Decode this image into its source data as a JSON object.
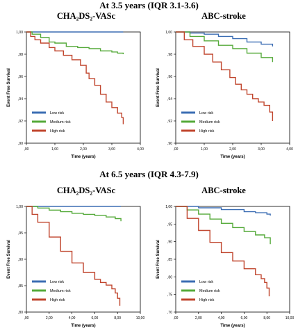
{
  "sections": [
    {
      "title": "At 3.5 years (IQR 3.1-3.6)"
    },
    {
      "title": "At 6.5 years (IQR 4.3-7.9)"
    }
  ],
  "legend_labels": [
    "Low risk",
    "Medium risk",
    "High risk"
  ],
  "colors": {
    "low": "#3b6db3",
    "medium": "#55aa3a",
    "high": "#c0452d"
  },
  "chart_data": [
    {
      "type": "line",
      "title": "CHA₂DS₂-VASc",
      "xlabel": "Time (years)",
      "ylabel": "Event Free Survival",
      "xlim": [
        0,
        4
      ],
      "ylim": [
        0.9,
        1.0
      ],
      "x_ticks": [
        ",00",
        "1,00",
        "2,00",
        "3,00",
        "4,00"
      ],
      "y_ticks": [
        ",90",
        ",92",
        ",94",
        ",96",
        ",98",
        "1,00"
      ],
      "series": [
        {
          "name": "Low risk",
          "x": [
            0,
            0.5,
            1.0,
            1.5,
            2.0,
            2.5,
            3.0,
            3.4
          ],
          "y": [
            1.0,
            1.0,
            1.0,
            1.0,
            1.0,
            1.0,
            1.0,
            1.0
          ]
        },
        {
          "name": "Medium risk",
          "x": [
            0,
            0.2,
            0.5,
            0.8,
            1.0,
            1.4,
            1.8,
            2.2,
            2.6,
            3.0,
            3.2,
            3.4
          ],
          "y": [
            1.0,
            0.998,
            0.995,
            0.991,
            0.99,
            0.987,
            0.986,
            0.985,
            0.983,
            0.982,
            0.981,
            0.98
          ]
        },
        {
          "name": "High risk",
          "x": [
            0,
            0.15,
            0.3,
            0.5,
            0.8,
            1.0,
            1.3,
            1.6,
            1.9,
            2.1,
            2.2,
            2.4,
            2.6,
            2.8,
            3.0,
            3.2,
            3.35,
            3.4
          ],
          "y": [
            1.0,
            0.996,
            0.993,
            0.99,
            0.986,
            0.983,
            0.979,
            0.975,
            0.97,
            0.963,
            0.958,
            0.952,
            0.944,
            0.937,
            0.932,
            0.927,
            0.923,
            0.917
          ]
        }
      ]
    },
    {
      "type": "line",
      "title": "ABC-stroke",
      "xlabel": "Time (years)",
      "ylabel": "Event Free Survival",
      "xlim": [
        0,
        4
      ],
      "ylim": [
        0.9,
        1.0
      ],
      "x_ticks": [
        ",00",
        "1,00",
        "2,00",
        "3,00",
        "4,00"
      ],
      "y_ticks": [
        ",90",
        ",92",
        ",94",
        ",96",
        ",98",
        "1,00"
      ],
      "series": [
        {
          "name": "Low risk",
          "x": [
            0,
            0.5,
            1.0,
            1.5,
            2.0,
            2.5,
            3.0,
            3.4
          ],
          "y": [
            1.0,
            0.999,
            0.998,
            0.996,
            0.994,
            0.991,
            0.989,
            0.987
          ]
        },
        {
          "name": "Medium risk",
          "x": [
            0,
            0.5,
            1.0,
            1.5,
            2.0,
            2.5,
            3.0,
            3.4
          ],
          "y": [
            1.0,
            0.996,
            0.992,
            0.988,
            0.985,
            0.981,
            0.977,
            0.973
          ]
        },
        {
          "name": "High risk",
          "x": [
            0,
            0.3,
            0.6,
            1.0,
            1.3,
            1.6,
            1.9,
            2.1,
            2.3,
            2.5,
            2.7,
            2.9,
            3.1,
            3.3,
            3.4
          ],
          "y": [
            1.0,
            0.993,
            0.987,
            0.98,
            0.973,
            0.966,
            0.959,
            0.953,
            0.948,
            0.944,
            0.94,
            0.937,
            0.934,
            0.928,
            0.92
          ]
        }
      ]
    },
    {
      "type": "line",
      "title": "CHA₂DS₂-VASc",
      "xlabel": "Time (years)",
      "ylabel": "Event Free Survival",
      "xlim": [
        0,
        10
      ],
      "ylim": [
        0.8,
        1.0
      ],
      "x_ticks": [
        ",00",
        "2,00",
        "4,00",
        "6,00",
        "8,00",
        "10,00"
      ],
      "y_ticks": [
        ",80",
        ",85",
        ",90",
        ",95",
        "1,00"
      ],
      "series": [
        {
          "name": "Low risk",
          "x": [
            0,
            2,
            4,
            6,
            8,
            8.3
          ],
          "y": [
            1.0,
            1.0,
            1.0,
            1.0,
            1.0,
            1.0
          ]
        },
        {
          "name": "Medium risk",
          "x": [
            0,
            1,
            2,
            3,
            4,
            5,
            6,
            7,
            7.8,
            8.3
          ],
          "y": [
            1.0,
            0.997,
            0.993,
            0.99,
            0.987,
            0.985,
            0.983,
            0.98,
            0.977,
            0.972
          ]
        },
        {
          "name": "High risk",
          "x": [
            0,
            0.5,
            1,
            2,
            3,
            4,
            5,
            6,
            6.5,
            7,
            7.5,
            7.8,
            8.0,
            8.2
          ],
          "y": [
            1.0,
            0.985,
            0.97,
            0.942,
            0.915,
            0.893,
            0.875,
            0.862,
            0.856,
            0.851,
            0.844,
            0.836,
            0.826,
            0.812
          ]
        }
      ]
    },
    {
      "type": "line",
      "title": "ABC-stroke",
      "xlabel": "Time (years)",
      "ylabel": "Event Free Survival",
      "xlim": [
        0,
        10
      ],
      "ylim": [
        0.7,
        1.0
      ],
      "x_ticks": [
        ",00",
        "2,00",
        "4,00",
        "6,00",
        "8,00",
        "10,00"
      ],
      "y_ticks": [
        ",70",
        ",75",
        ",80",
        ",85",
        ",90",
        ",95",
        "1,00"
      ],
      "series": [
        {
          "name": "Low risk",
          "x": [
            0,
            2,
            4,
            6,
            7,
            8,
            8.3
          ],
          "y": [
            1.0,
            0.996,
            0.991,
            0.985,
            0.982,
            0.978,
            0.974
          ]
        },
        {
          "name": "Medium risk",
          "x": [
            0,
            1,
            2,
            3,
            4,
            5,
            6,
            7,
            7.8,
            8.3
          ],
          "y": [
            1.0,
            0.99,
            0.978,
            0.964,
            0.952,
            0.94,
            0.929,
            0.919,
            0.911,
            0.893
          ]
        },
        {
          "name": "High risk",
          "x": [
            0,
            1,
            2,
            3,
            4,
            5,
            6,
            7,
            7.5,
            7.8,
            8.0,
            8.2
          ],
          "y": [
            1.0,
            0.966,
            0.932,
            0.898,
            0.869,
            0.845,
            0.823,
            0.806,
            0.795,
            0.784,
            0.768,
            0.745
          ]
        }
      ]
    }
  ]
}
